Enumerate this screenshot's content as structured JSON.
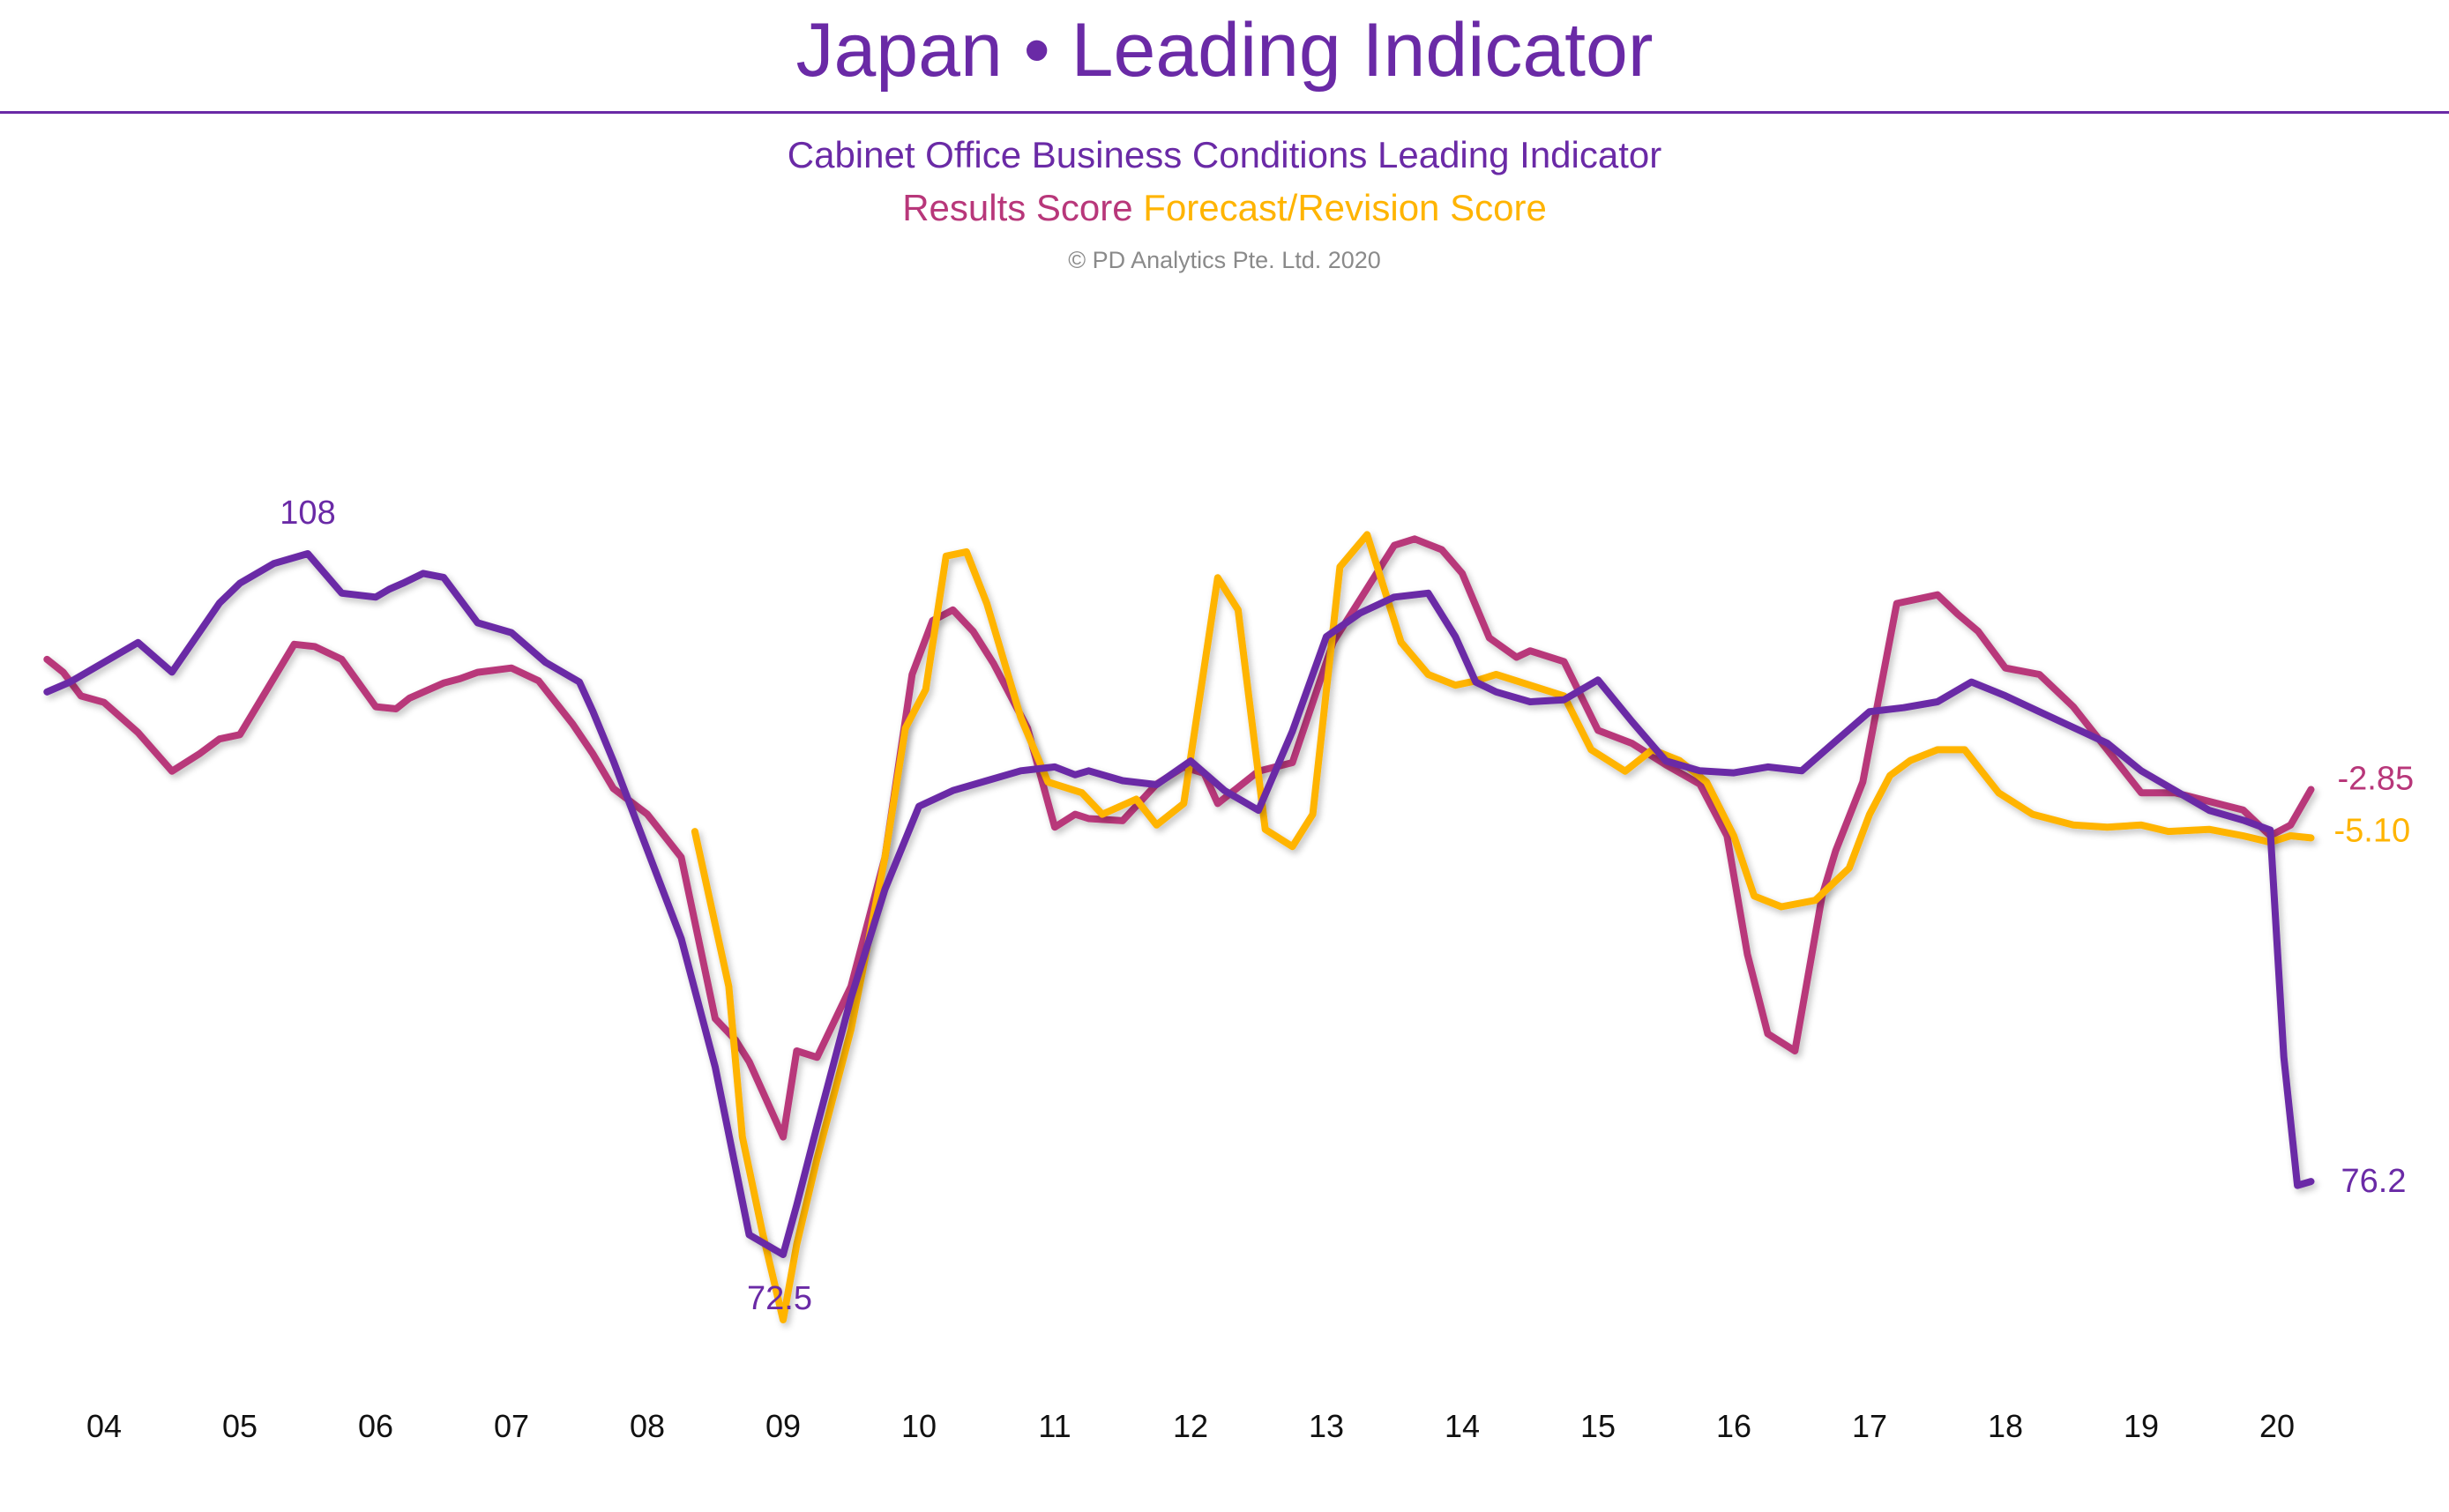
{
  "header": {
    "title": "Japan • Leading Indicator",
    "subtitle": "Cabinet Office Business Conditions Leading Indicator",
    "series_line_results": "Results Score",
    "series_line_forecast": "Forecast/Revision Score",
    "copyright": "© PD Analytics Pte. Ltd. 2020"
  },
  "colors": {
    "leading_indicator": "#6a2aa6",
    "results_score": "#b8377a",
    "forecast_score": "#ffb400",
    "title": "#6a2aa6"
  },
  "chart_data": {
    "type": "line",
    "title": "Japan • Leading Indicator",
    "subtitle": "Cabinet Office Business Conditions Leading Indicator",
    "x_tick_labels": [
      "04",
      "05",
      "06",
      "07",
      "08",
      "09",
      "10",
      "11",
      "12",
      "13",
      "14",
      "15",
      "16",
      "17",
      "18",
      "19",
      "20"
    ],
    "x_tick_years": [
      2004.0,
      2005.0,
      2006.0,
      2007.0,
      2008.0,
      2009.0,
      2010.0,
      2011.0,
      2012.0,
      2013.0,
      2014.0,
      2015.0,
      2016.0,
      2017.0,
      2018.0,
      2019.0,
      2020.0
    ],
    "y_axis_shown": false,
    "grid": false,
    "legend": "subtitle text",
    "annotations": [
      {
        "text": "108",
        "series": "leading_indicator"
      },
      {
        "text": "72.5",
        "series": "leading_indicator"
      },
      {
        "text": "76.2",
        "series": "leading_indicator"
      },
      {
        "text": "-2.85",
        "series": "results_score"
      },
      {
        "text": "-5.10",
        "series": "forecast_score"
      }
    ],
    "series": [
      {
        "key": "results_score",
        "name": "Results Score",
        "unit": "score",
        "x": [
          2003.58,
          2003.7,
          2003.83,
          2004.0,
          2004.25,
          2004.5,
          2004.7,
          2004.85,
          2005.0,
          2005.2,
          2005.4,
          2005.55,
          2005.75,
          2006.0,
          2006.15,
          2006.25,
          2006.5,
          2006.62,
          2006.75,
          2007.0,
          2007.2,
          2007.45,
          2007.6,
          2007.75,
          2008.0,
          2008.25,
          2008.5,
          2008.65,
          2008.75,
          2009.0,
          2009.1,
          2009.25,
          2009.5,
          2009.75,
          2009.95,
          2010.1,
          2010.25,
          2010.4,
          2010.55,
          2010.8,
          2011.0,
          2011.15,
          2011.25,
          2011.5,
          2011.75,
          2011.95,
          2012.1,
          2012.2,
          2012.5,
          2012.75,
          2012.9,
          2013.05,
          2013.25,
          2013.5,
          2013.65,
          2013.85,
          2014.0,
          2014.2,
          2014.4,
          2014.5,
          2014.75,
          2015.0,
          2015.25,
          2015.5,
          2015.75,
          2015.95,
          2016.1,
          2016.25,
          2016.45,
          2016.65,
          2016.75,
          2016.95,
          2017.2,
          2017.5,
          2017.65,
          2017.8,
          2018.0,
          2018.25,
          2018.5,
          2018.75,
          2019.0,
          2019.25,
          2019.5,
          2019.75,
          2019.95,
          2020.1,
          2020.25
        ],
        "values": [
          3.2,
          2.6,
          1.5,
          1.2,
          -0.2,
          -2.0,
          -1.2,
          -0.5,
          -0.3,
          1.8,
          3.9,
          3.8,
          3.2,
          1.0,
          0.9,
          1.4,
          2.1,
          2.3,
          2.6,
          2.8,
          2.2,
          0.2,
          -1.2,
          -2.8,
          -4.0,
          -6.0,
          -13.5,
          -14.5,
          -15.5,
          -19.0,
          -15.0,
          -15.3,
          -12.0,
          -6.0,
          2.5,
          5.0,
          5.5,
          4.5,
          3.0,
          0.0,
          -4.6,
          -4.0,
          -4.2,
          -4.3,
          -2.6,
          -1.8,
          -2.1,
          -3.5,
          -2.0,
          -1.6,
          1.2,
          4.0,
          6.0,
          8.5,
          8.8,
          8.3,
          7.2,
          4.2,
          3.3,
          3.6,
          3.1,
          -0.1,
          -0.7,
          -1.7,
          -2.6,
          -5.0,
          -10.5,
          -14.2,
          -15.0,
          -7.8,
          -5.7,
          -2.5,
          5.8,
          6.2,
          5.3,
          4.5,
          2.8,
          2.5,
          1.0,
          -1.0,
          -3.0,
          -3.0,
          -3.4,
          -3.8,
          -5.0,
          -4.5,
          -2.85
        ]
      },
      {
        "key": "forecast_score",
        "name": "Forecast/Revision Score",
        "unit": "score",
        "x": [
          2008.35,
          2008.6,
          2008.7,
          2008.85,
          2009.0,
          2009.1,
          2009.25,
          2009.5,
          2009.75,
          2009.9,
          2010.05,
          2010.2,
          2010.35,
          2010.5,
          2010.75,
          2010.95,
          2011.2,
          2011.35,
          2011.6,
          2011.75,
          2011.95,
          2012.1,
          2012.2,
          2012.35,
          2012.55,
          2012.75,
          2012.9,
          2013.1,
          2013.3,
          2013.55,
          2013.75,
          2013.95,
          2014.1,
          2014.25,
          2014.5,
          2014.75,
          2014.95,
          2015.2,
          2015.4,
          2015.6,
          2015.8,
          2016.0,
          2016.15,
          2016.35,
          2016.6,
          2016.85,
          2017.0,
          2017.15,
          2017.3,
          2017.5,
          2017.7,
          2017.95,
          2018.2,
          2018.5,
          2018.75,
          2019.0,
          2019.2,
          2019.5,
          2019.75,
          2019.95,
          2020.1,
          2020.25
        ],
        "values": [
          -4.8,
          -12.0,
          -19.0,
          -23.5,
          -27.5,
          -24.0,
          -20.0,
          -14.0,
          -6.0,
          0.0,
          1.8,
          8.0,
          8.2,
          5.8,
          0.5,
          -2.5,
          -3.0,
          -4.0,
          -3.3,
          -4.5,
          -3.5,
          2.8,
          7.0,
          5.5,
          -4.7,
          -5.5,
          -4.0,
          7.5,
          9.0,
          4.0,
          2.5,
          2.0,
          2.2,
          2.5,
          2.0,
          1.5,
          -1.0,
          -2.0,
          -1.0,
          -1.5,
          -2.5,
          -5.0,
          -7.8,
          -8.3,
          -8.0,
          -6.5,
          -4.0,
          -2.2,
          -1.5,
          -1.0,
          -1.0,
          -3.0,
          -4.0,
          -4.5,
          -4.6,
          -4.5,
          -4.8,
          -4.7,
          -5.0,
          -5.3,
          -5.0,
          -5.1
        ]
      },
      {
        "key": "leading_indicator",
        "name": "Cabinet Office Business Conditions Leading Indicator",
        "unit": "index",
        "x": [
          2003.58,
          2003.75,
          2004.0,
          2004.25,
          2004.5,
          2004.7,
          2004.85,
          2005.0,
          2005.25,
          2005.5,
          2005.75,
          2006.0,
          2006.1,
          2006.2,
          2006.35,
          2006.5,
          2006.75,
          2007.0,
          2007.25,
          2007.5,
          2007.6,
          2007.75,
          2008.0,
          2008.25,
          2008.5,
          2008.75,
          2009.0,
          2009.1,
          2009.25,
          2009.5,
          2009.75,
          2010.0,
          2010.25,
          2010.5,
          2010.75,
          2011.0,
          2011.15,
          2011.25,
          2011.5,
          2011.75,
          2012.0,
          2012.25,
          2012.5,
          2012.75,
          2013.0,
          2013.25,
          2013.5,
          2013.75,
          2013.95,
          2014.1,
          2014.25,
          2014.5,
          2014.75,
          2015.0,
          2015.25,
          2015.5,
          2015.75,
          2016.0,
          2016.25,
          2016.5,
          2016.75,
          2017.0,
          2017.25,
          2017.5,
          2017.75,
          2018.0,
          2018.25,
          2018.5,
          2018.75,
          2019.0,
          2019.25,
          2019.5,
          2019.75,
          2019.95,
          2020.05,
          2020.15,
          2020.25
        ],
        "values": [
          101.0,
          101.5,
          102.5,
          103.5,
          102.0,
          104.0,
          105.5,
          106.5,
          107.5,
          108.0,
          106.0,
          105.8,
          106.2,
          106.5,
          107.0,
          106.8,
          104.5,
          104.0,
          102.5,
          101.5,
          100.0,
          97.5,
          93.0,
          88.5,
          82.0,
          73.5,
          72.5,
          75.0,
          79.0,
          85.5,
          91.0,
          95.2,
          96.0,
          96.5,
          97.0,
          97.2,
          96.8,
          97.0,
          96.5,
          96.3,
          97.5,
          96.0,
          95.0,
          99.0,
          103.8,
          105.0,
          105.8,
          106.0,
          103.8,
          101.5,
          101.0,
          100.5,
          100.6,
          101.6,
          99.5,
          97.5,
          97.0,
          96.9,
          97.2,
          97.0,
          98.5,
          100.0,
          100.2,
          100.5,
          101.5,
          100.8,
          100.0,
          99.2,
          98.4,
          97.0,
          96.0,
          95.0,
          94.5,
          94.0,
          82.5,
          76.0,
          76.2
        ]
      }
    ]
  }
}
